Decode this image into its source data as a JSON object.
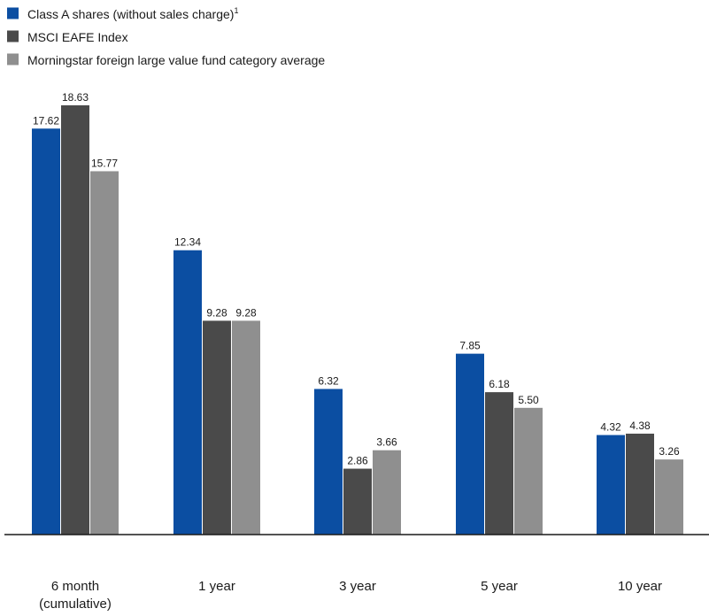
{
  "chart_data": {
    "type": "bar",
    "title": "",
    "xlabel": "",
    "ylabel": "",
    "categories": [
      "6 month\n(cumulative)",
      "1 year",
      "3 year",
      "5 year",
      "10 year"
    ],
    "series": [
      {
        "name": "Class A shares (without sales charge)",
        "name_superscript": "1",
        "color": "#0b4ea2",
        "values": [
          17.62,
          12.34,
          6.32,
          7.85,
          4.32
        ],
        "labels": [
          "17.62",
          "12.34",
          "6.32",
          "7.85",
          "4.32"
        ]
      },
      {
        "name": "MSCI EAFE Index",
        "color": "#4a4a4a",
        "values": [
          18.63,
          9.28,
          2.86,
          6.18,
          4.38
        ],
        "labels": [
          "18.63",
          "9.28",
          "2.86",
          "6.18",
          "4.38"
        ]
      },
      {
        "name": "Morningstar foreign large value fund category average",
        "color": "#8f8f8f",
        "values": [
          15.77,
          9.28,
          3.66,
          5.5,
          3.26
        ],
        "labels": [
          "15.77",
          "9.28",
          "3.66",
          "5.50",
          "3.26"
        ]
      }
    ],
    "ylim": [
      0,
      18.63
    ],
    "grid": false,
    "legend_position": "top-left",
    "baseline_color": "#1a1a1a"
  }
}
